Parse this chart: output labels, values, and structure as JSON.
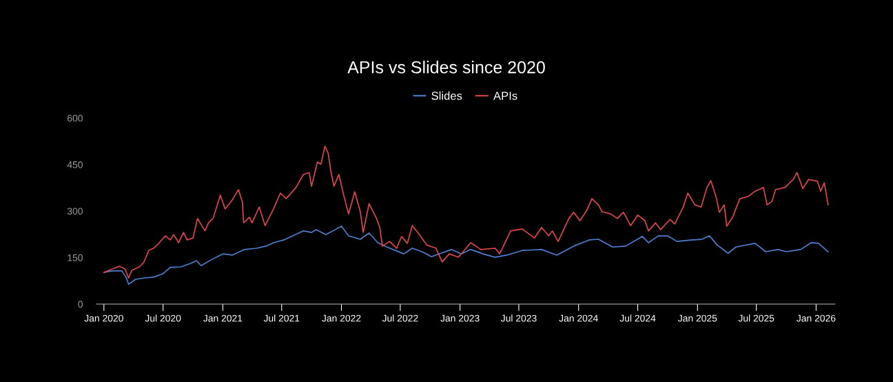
{
  "chart_data": {
    "type": "line",
    "title": "APIs vs Slides since 2020",
    "series": [
      {
        "name": "Slides",
        "color": "#4f7fcf",
        "x": [
          "2020-01-01",
          "2020-01-26",
          "2020-02-25",
          "2020-03-09",
          "2020-03-17",
          "2020-04-08",
          "2020-05-03",
          "2020-06-02",
          "2020-07-01",
          "2020-07-23",
          "2020-08-25",
          "2020-09-24",
          "2020-10-12",
          "2020-10-26",
          "2020-11-25",
          "2021-01-01",
          "2021-01-30",
          "2021-03-09",
          "2021-04-15",
          "2021-05-14",
          "2021-06-06",
          "2021-07-08",
          "2021-09-06",
          "2021-10-01",
          "2021-10-15",
          "2021-11-14",
          "2022-01-01",
          "2022-01-23",
          "2022-02-28",
          "2022-03-27",
          "2022-04-23",
          "2022-05-21",
          "2022-07-12",
          "2022-08-07",
          "2022-09-06",
          "2022-10-05",
          "2022-11-03",
          "2022-12-06",
          "2023-01-05",
          "2023-02-03",
          "2023-03-13",
          "2023-04-19",
          "2023-05-25",
          "2023-07-12",
          "2023-09-09",
          "2023-10-26",
          "2023-12-17",
          "2024-02-03",
          "2024-03-02",
          "2024-04-15",
          "2024-05-25",
          "2024-07-15",
          "2024-08-03",
          "2024-09-02",
          "2024-10-01",
          "2024-10-30",
          "2024-12-17",
          "2025-01-15",
          "2025-02-07",
          "2025-03-02",
          "2025-04-05",
          "2025-04-29",
          "2025-06-27",
          "2025-07-30",
          "2025-09-06",
          "2025-10-01",
          "2025-11-14",
          "2025-12-17",
          "2026-01-08",
          "2026-02-07"
        ],
        "values": [
          102,
          107,
          107,
          87,
          64,
          80,
          84,
          87,
          98,
          118,
          120,
          131,
          140,
          124,
          142,
          162,
          158,
          176,
          180,
          187,
          198,
          207,
          236,
          231,
          240,
          224,
          251,
          220,
          209,
          229,
          198,
          184,
          162,
          180,
          169,
          153,
          164,
          176,
          162,
          176,
          162,
          151,
          158,
          173,
          176,
          158,
          187,
          207,
          209,
          184,
          187,
          218,
          198,
          220,
          220,
          202,
          207,
          209,
          220,
          191,
          164,
          184,
          196,
          169,
          176,
          169,
          176,
          198,
          196,
          169
        ]
      },
      {
        "name": "APIs",
        "color": "#e0474c",
        "x": [
          "2020-01-01",
          "2020-01-26",
          "2020-02-18",
          "2020-03-06",
          "2020-03-17",
          "2020-03-27",
          "2020-04-19",
          "2020-05-03",
          "2020-05-18",
          "2020-06-02",
          "2020-06-17",
          "2020-07-08",
          "2020-07-23",
          "2020-08-03",
          "2020-08-18",
          "2020-09-02",
          "2020-09-13",
          "2020-10-01",
          "2020-10-15",
          "2020-11-07",
          "2020-11-18",
          "2020-12-02",
          "2020-12-24",
          "2021-01-08",
          "2021-01-30",
          "2021-02-18",
          "2021-03-02",
          "2021-03-06",
          "2021-03-24",
          "2021-04-01",
          "2021-04-23",
          "2021-05-11",
          "2021-06-06",
          "2021-06-27",
          "2021-07-15",
          "2021-08-14",
          "2021-09-06",
          "2021-09-24",
          "2021-10-01",
          "2021-10-19",
          "2021-10-30",
          "2021-11-11",
          "2021-11-21",
          "2021-11-29",
          "2021-12-09",
          "2021-12-24",
          "2022-01-08",
          "2022-01-23",
          "2022-02-11",
          "2022-02-28",
          "2022-03-09",
          "2022-03-27",
          "2022-04-19",
          "2022-04-29",
          "2022-05-07",
          "2022-05-29",
          "2022-06-20",
          "2022-07-05",
          "2022-07-23",
          "2022-08-07",
          "2022-08-29",
          "2022-09-20",
          "2022-10-19",
          "2022-11-07",
          "2022-11-29",
          "2022-12-27",
          "2023-02-03",
          "2023-03-06",
          "2023-04-19",
          "2023-05-03",
          "2023-06-06",
          "2023-07-12",
          "2023-08-18",
          "2023-09-09",
          "2023-10-01",
          "2023-10-12",
          "2023-10-30",
          "2023-12-02",
          "2023-12-17",
          "2024-01-05",
          "2024-01-26",
          "2024-02-11",
          "2024-03-02",
          "2024-03-13",
          "2024-04-08",
          "2024-04-29",
          "2024-05-18",
          "2024-06-09",
          "2024-07-01",
          "2024-07-23",
          "2024-08-03",
          "2024-08-25",
          "2024-09-09",
          "2024-10-08",
          "2024-10-23",
          "2024-11-18",
          "2024-12-02",
          "2024-12-24",
          "2025-01-12",
          "2025-01-30",
          "2025-02-11",
          "2025-02-28",
          "2025-03-09",
          "2025-03-24",
          "2025-04-01",
          "2025-04-19",
          "2025-05-11",
          "2025-06-06",
          "2025-06-27",
          "2025-07-23",
          "2025-08-03",
          "2025-08-18",
          "2025-08-29",
          "2025-09-27",
          "2025-10-23",
          "2025-11-03",
          "2025-11-21",
          "2025-12-09",
          "2026-01-05",
          "2026-01-15",
          "2026-01-26",
          "2026-02-07"
        ],
        "values": [
          102,
          113,
          122,
          113,
          84,
          109,
          120,
          135,
          173,
          180,
          195,
          220,
          207,
          224,
          198,
          231,
          207,
          213,
          276,
          236,
          262,
          276,
          351,
          307,
          336,
          369,
          329,
          262,
          280,
          262,
          313,
          253,
          307,
          358,
          340,
          376,
          418,
          424,
          380,
          458,
          451,
          509,
          487,
          431,
          380,
          418,
          351,
          291,
          362,
          298,
          231,
          324,
          276,
          247,
          187,
          202,
          180,
          218,
          196,
          253,
          224,
          191,
          180,
          136,
          162,
          151,
          198,
          176,
          180,
          162,
          236,
          242,
          213,
          247,
          220,
          236,
          202,
          276,
          296,
          269,
          302,
          340,
          320,
          298,
          291,
          276,
          296,
          253,
          287,
          269,
          236,
          262,
          240,
          273,
          258,
          313,
          358,
          320,
          313,
          376,
          398,
          342,
          296,
          320,
          251,
          280,
          340,
          347,
          364,
          376,
          320,
          331,
          369,
          376,
          402,
          424,
          373,
          402,
          396,
          364,
          391,
          320
        ]
      }
    ],
    "xlim": [
      "2019-12-09",
      "2026-02-28"
    ],
    "xticks": [
      {
        "value": "2020-01-01",
        "label": "Jan 2020"
      },
      {
        "value": "2020-07-01",
        "label": "Jul 2020"
      },
      {
        "value": "2021-01-01",
        "label": "Jan 2021"
      },
      {
        "value": "2021-07-01",
        "label": "Jul 2021"
      },
      {
        "value": "2022-01-01",
        "label": "Jan 2022"
      },
      {
        "value": "2022-07-01",
        "label": "Jul 2022"
      },
      {
        "value": "2023-01-01",
        "label": "Jan 2023"
      },
      {
        "value": "2023-07-01",
        "label": "Jul 2023"
      },
      {
        "value": "2024-01-01",
        "label": "Jan 2024"
      },
      {
        "value": "2024-07-01",
        "label": "Jul 2024"
      },
      {
        "value": "2025-01-01",
        "label": "Jan 2025"
      },
      {
        "value": "2025-07-01",
        "label": "Jul 2025"
      },
      {
        "value": "2026-01-01",
        "label": "Jan 2026"
      }
    ],
    "ylim": [
      0,
      600
    ],
    "yticks": [
      0,
      150,
      300,
      450,
      600
    ],
    "grid": false,
    "legend": "top",
    "marker": "none",
    "line_style": "solid"
  }
}
